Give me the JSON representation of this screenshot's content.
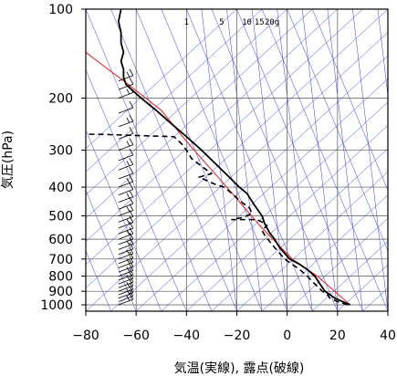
{
  "chart_data": {
    "type": "line",
    "title": "",
    "xlabel": "気温(実線), 露点(破線)",
    "ylabel": "気圧(hPa)",
    "xlim": [
      -80,
      40
    ],
    "ylim": [
      1000,
      100
    ],
    "yscale": "log",
    "x_ticks": [
      "−80",
      "−60",
      "−40",
      "−20",
      "0",
      "20",
      "40"
    ],
    "y_ticks": [
      "100",
      "200",
      "300",
      "400",
      "500",
      "600",
      "700",
      "800",
      "900",
      "1000"
    ],
    "mixing_ratio_labels": [
      "1",
      "5",
      "10",
      "15",
      "20g"
    ],
    "grid": true,
    "colors": {
      "temperature": "#000000",
      "dewpoint": "#000000",
      "reference_line": "#e03030",
      "background_lines": "#3a3ad8"
    },
    "series": [
      {
        "style": "solid",
        "points": [
          [
            25,
            1000
          ],
          [
            22,
            975
          ],
          [
            19,
            950
          ],
          [
            17,
            925
          ],
          [
            15,
            900
          ],
          [
            13,
            850
          ],
          [
            11,
            800
          ],
          [
            8,
            760
          ],
          [
            5,
            730
          ],
          [
            1,
            700
          ],
          [
            -1,
            670
          ],
          [
            -3,
            640
          ],
          [
            -4,
            620
          ],
          [
            -5,
            600
          ],
          [
            -7,
            570
          ],
          [
            -8,
            550
          ],
          [
            -9,
            530
          ],
          [
            -10,
            500
          ],
          [
            -13,
            460
          ],
          [
            -16,
            420
          ],
          [
            -19,
            400
          ],
          [
            -23,
            370
          ],
          [
            -29,
            330
          ],
          [
            -34,
            300
          ],
          [
            -40,
            270
          ],
          [
            -47,
            240
          ],
          [
            -52,
            220
          ],
          [
            -58,
            200
          ],
          [
            -64,
            180
          ],
          [
            -65,
            170
          ],
          [
            -65,
            160
          ],
          [
            -66,
            150
          ],
          [
            -65,
            140
          ],
          [
            -66,
            130
          ],
          [
            -66,
            120
          ],
          [
            -67,
            110
          ],
          [
            -66,
            100
          ]
        ]
      },
      {
        "style": "dashed",
        "points": [
          [
            24,
            1000
          ],
          [
            20,
            975
          ],
          [
            17,
            950
          ],
          [
            16,
            925
          ],
          [
            14,
            900
          ],
          [
            11,
            850
          ],
          [
            8,
            800
          ],
          [
            5,
            760
          ],
          [
            -1,
            700
          ],
          [
            -5,
            640
          ],
          [
            -7,
            610
          ],
          [
            -9,
            580
          ],
          [
            -10,
            560
          ],
          [
            -8,
            540
          ],
          [
            -10,
            525
          ],
          [
            -12,
            515
          ],
          [
            -22,
            515
          ],
          [
            -17,
            505
          ],
          [
            -14,
            490
          ],
          [
            -15,
            470
          ],
          [
            -18,
            450
          ],
          [
            -22,
            420
          ],
          [
            -25,
            400
          ],
          [
            -29,
            390
          ],
          [
            -35,
            370
          ],
          [
            -30,
            360
          ],
          [
            -34,
            340
          ],
          [
            -38,
            320
          ],
          [
            -40,
            300
          ],
          [
            -42,
            285
          ],
          [
            -45,
            270
          ],
          [
            -75,
            265
          ],
          [
            -79,
            265
          ]
        ]
      }
    ],
    "reference_line_points": [
      [
        25,
        1000
      ],
      [
        12,
        800
      ],
      [
        2,
        700
      ],
      [
        -10,
        550
      ],
      [
        -24,
        400
      ],
      [
        -40,
        280
      ],
      [
        -50,
        220
      ],
      [
        -63,
        180
      ],
      [
        -71,
        160
      ],
      [
        -80,
        140
      ]
    ],
    "wind_barbs": {
      "x": -67,
      "side": "left",
      "levels": [
        1000,
        975,
        950,
        925,
        900,
        875,
        850,
        825,
        800,
        775,
        750,
        725,
        700,
        675,
        650,
        625,
        600,
        575,
        550,
        525,
        500,
        475,
        450,
        425,
        400,
        375,
        350,
        325,
        300,
        275,
        250,
        225,
        200,
        187,
        175
      ]
    }
  }
}
